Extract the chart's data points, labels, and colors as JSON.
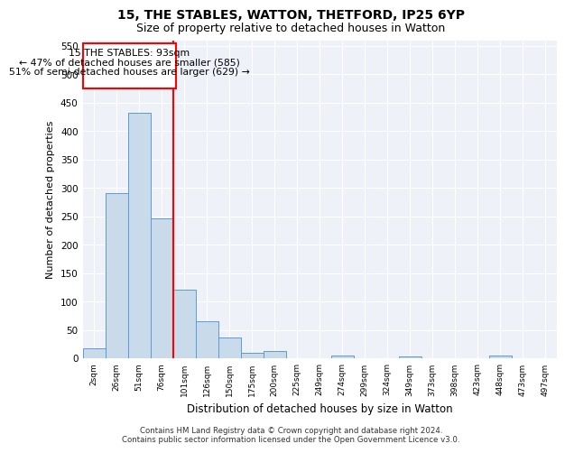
{
  "title1": "15, THE STABLES, WATTON, THETFORD, IP25 6YP",
  "title2": "Size of property relative to detached houses in Watton",
  "xlabel": "Distribution of detached houses by size in Watton",
  "ylabel": "Number of detached properties",
  "footer1": "Contains HM Land Registry data © Crown copyright and database right 2024.",
  "footer2": "Contains public sector information licensed under the Open Government Licence v3.0.",
  "categories": [
    "2sqm",
    "26sqm",
    "51sqm",
    "76sqm",
    "101sqm",
    "126sqm",
    "150sqm",
    "175sqm",
    "200sqm",
    "225sqm",
    "249sqm",
    "274sqm",
    "299sqm",
    "324sqm",
    "349sqm",
    "373sqm",
    "398sqm",
    "423sqm",
    "448sqm",
    "473sqm",
    "497sqm"
  ],
  "bar_values": [
    18,
    290,
    432,
    247,
    120,
    65,
    36,
    9,
    12,
    0,
    0,
    5,
    0,
    0,
    3,
    0,
    0,
    0,
    5,
    0,
    0
  ],
  "bar_color": "#c9daea",
  "bar_edge_color": "#5b9bd5",
  "vline_position": 3.5,
  "annotation_title": "15 THE STABLES: 93sqm",
  "annotation_line1": "← 47% of detached houses are smaller (585)",
  "annotation_line2": "51% of semi-detached houses are larger (629) →",
  "vline_color": "red",
  "annotation_box_edge": "red",
  "ylim": [
    0,
    560
  ],
  "yticks": [
    0,
    50,
    100,
    150,
    200,
    250,
    300,
    350,
    400,
    450,
    500,
    550
  ],
  "background_color": "#eef2f8",
  "grid_color": "white",
  "title1_fontsize": 10,
  "title2_fontsize": 9
}
